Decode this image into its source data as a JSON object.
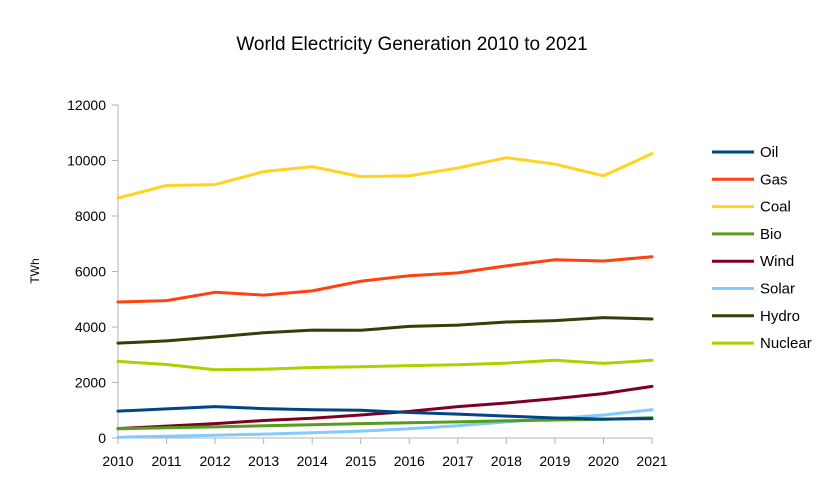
{
  "chart_data": {
    "type": "line",
    "title": "World Electricity Generation 2010 to  2021",
    "xlabel": "",
    "ylabel": "TWh",
    "ylim": [
      0,
      12000
    ],
    "yticks": [
      0,
      2000,
      4000,
      6000,
      8000,
      10000,
      12000
    ],
    "grid": false,
    "legend_position": "right",
    "categories": [
      "2010",
      "2011",
      "2012",
      "2013",
      "2014",
      "2015",
      "2016",
      "2017",
      "2018",
      "2019",
      "2020",
      "2021"
    ],
    "series": [
      {
        "name": "Oil",
        "color": "#004586",
        "values": [
          970,
          1050,
          1130,
          1060,
          1020,
          1000,
          920,
          860,
          790,
          720,
          680,
          700
        ]
      },
      {
        "name": "Gas",
        "color": "#ff420e",
        "values": [
          4900,
          4950,
          5250,
          5150,
          5300,
          5650,
          5850,
          5950,
          6200,
          6420,
          6380,
          6530
        ]
      },
      {
        "name": "Coal",
        "color": "#ffd320",
        "values": [
          8650,
          9100,
          9130,
          9600,
          9780,
          9420,
          9450,
          9730,
          10100,
          9870,
          9450,
          10250
        ]
      },
      {
        "name": "Bio",
        "color": "#579d1c",
        "values": [
          330,
          370,
          400,
          440,
          480,
          520,
          550,
          580,
          620,
          650,
          670,
          730
        ]
      },
      {
        "name": "Wind",
        "color": "#7e0021",
        "values": [
          340,
          430,
          520,
          630,
          710,
          830,
          960,
          1130,
          1260,
          1420,
          1600,
          1860
        ]
      },
      {
        "name": "Solar",
        "color": "#83caff",
        "values": [
          30,
          60,
          100,
          140,
          190,
          250,
          330,
          440,
          580,
          700,
          830,
          1020
        ]
      },
      {
        "name": "Hydro",
        "color": "#314004",
        "values": [
          3420,
          3500,
          3640,
          3790,
          3890,
          3880,
          4020,
          4070,
          4180,
          4230,
          4340,
          4290
        ]
      },
      {
        "name": "Nuclear",
        "color": "#aecf00",
        "values": [
          2760,
          2650,
          2460,
          2480,
          2540,
          2570,
          2610,
          2640,
          2700,
          2800,
          2690,
          2800
        ]
      }
    ]
  }
}
